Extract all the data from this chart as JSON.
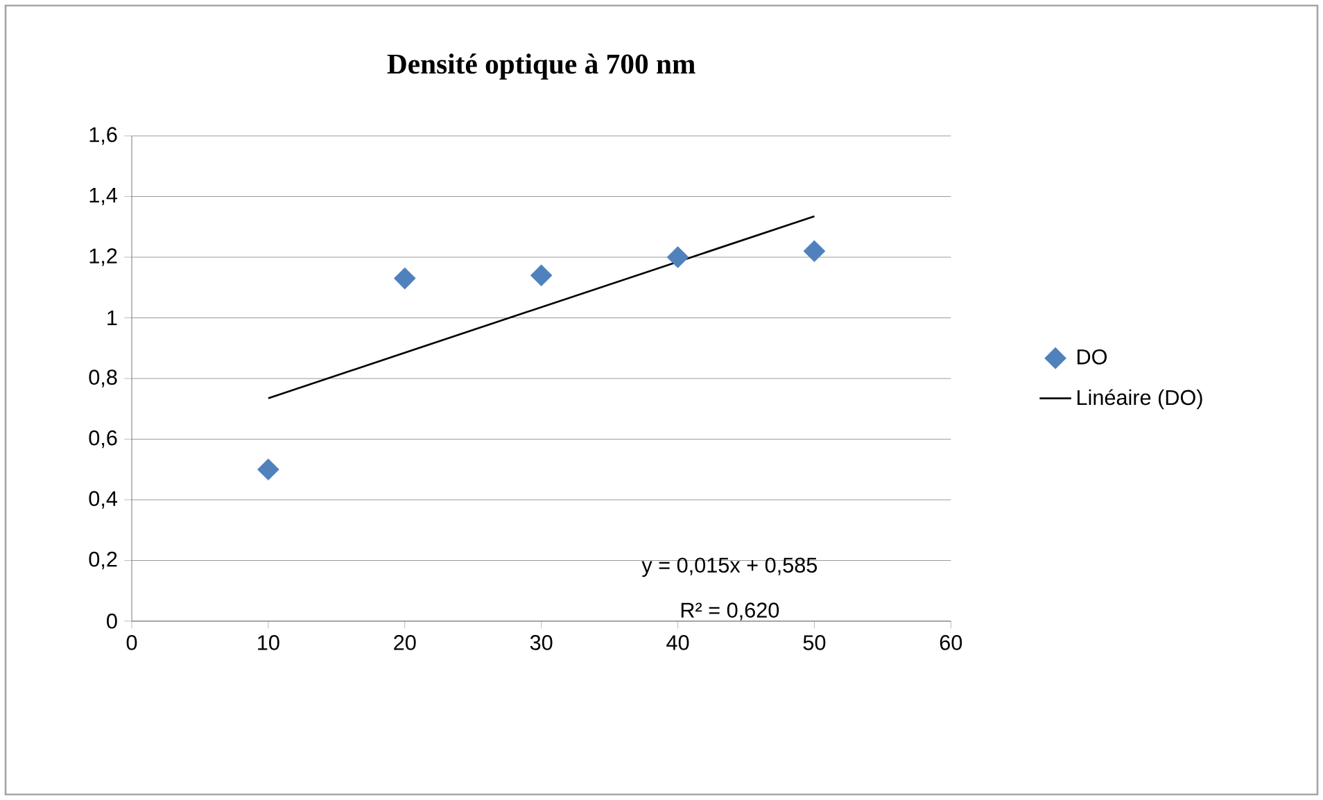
{
  "chart_data": {
    "type": "scatter",
    "title": "Densité optique à 700 nm",
    "series": [
      {
        "name": "DO",
        "color": "#4f81bd",
        "marker": "diamond",
        "x": [
          10,
          20,
          30,
          40,
          50
        ],
        "values": [
          0.5,
          1.13,
          1.14,
          1.2,
          1.22
        ]
      },
      {
        "name": "Linéaire (DO)",
        "type": "line",
        "color": "#000000",
        "marker": "none",
        "line_style": "solid",
        "x": [
          10,
          50
        ],
        "values": [
          0.735,
          1.335
        ]
      }
    ],
    "xlim": [
      0,
      60
    ],
    "xticks": [
      0,
      10,
      20,
      30,
      40,
      50,
      60
    ],
    "ylim": [
      0,
      1.6
    ],
    "yticks": [
      0,
      {
        "value": 0.2,
        "label": "0,2"
      },
      {
        "value": 0.4,
        "label": "0,4"
      },
      {
        "value": 0.6,
        "label": "0,6"
      },
      {
        "value": 0.8,
        "label": "0,8"
      },
      1,
      {
        "value": 1.2,
        "label": "1,2"
      },
      {
        "value": 1.4,
        "label": "1,4"
      },
      {
        "value": 1.6,
        "label": "1,6"
      }
    ],
    "grid": "y",
    "legend": "right",
    "annotations": [
      "y = 0,015x + 0,585",
      "R² = 0,620"
    ]
  }
}
